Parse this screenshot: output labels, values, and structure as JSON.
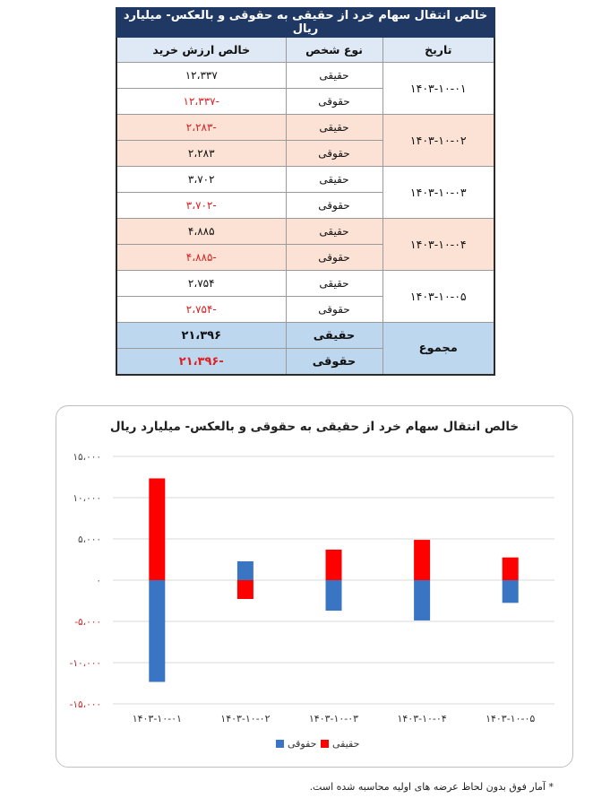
{
  "table": {
    "title": "خالص انتقال سهام خرد از حقیقی به حقوقی و بالعکس- میلیارد ریال",
    "headers": {
      "date": "تاریخ",
      "person_type": "نوع شخص",
      "net_value": "خالص ارزش خرید"
    },
    "groups": [
      {
        "date": "۱۴۰۳-۱۰-۰۱",
        "rows": [
          {
            "type": "حقیقی",
            "value": "۱۲،۳۳۷",
            "negative": false
          },
          {
            "type": "حقوقی",
            "value": "-۱۲،۳۳۷",
            "negative": true
          }
        ]
      },
      {
        "date": "۱۴۰۳-۱۰-۰۲",
        "rows": [
          {
            "type": "حقیقی",
            "value": "-۲،۲۸۳",
            "negative": true
          },
          {
            "type": "حقوقی",
            "value": "۲،۲۸۳",
            "negative": false
          }
        ]
      },
      {
        "date": "۱۴۰۳-۱۰-۰۳",
        "rows": [
          {
            "type": "حقیقی",
            "value": "۳،۷۰۲",
            "negative": false
          },
          {
            "type": "حقوقی",
            "value": "-۳،۷۰۲",
            "negative": true
          }
        ]
      },
      {
        "date": "۱۴۰۳-۱۰-۰۴",
        "rows": [
          {
            "type": "حقیقی",
            "value": "۴،۸۸۵",
            "negative": false
          },
          {
            "type": "حقوقی",
            "value": "-۴،۸۸۵",
            "negative": true
          }
        ]
      },
      {
        "date": "۱۴۰۳-۱۰-۰۵",
        "rows": [
          {
            "type": "حقیقی",
            "value": "۲،۷۵۴",
            "negative": false
          },
          {
            "type": "حقوقی",
            "value": "-۲،۷۵۴",
            "negative": true
          }
        ]
      }
    ],
    "total": {
      "label": "مجموع",
      "rows": [
        {
          "type": "حقیقی",
          "value": "۲۱،۳۹۶",
          "negative": false
        },
        {
          "type": "حقوقی",
          "value": "-۲۱،۳۹۶",
          "negative": true
        }
      ]
    }
  },
  "chart_data": {
    "type": "bar",
    "title": "خالص انتقال سهام خرد از حقیقی به حقوقی و بالعکس- میلیارد ریال",
    "categories": [
      "۱۴۰۳-۱۰-۰۱",
      "۱۴۰۳-۱۰-۰۲",
      "۱۴۰۳-۱۰-۰۳",
      "۱۴۰۳-۱۰-۰۴",
      "۱۴۰۳-۱۰-۰۵"
    ],
    "series": [
      {
        "name": "حقیقی",
        "color": "#ff0000",
        "values": [
          12337,
          -2283,
          3702,
          4885,
          2754
        ]
      },
      {
        "name": "حقوقی",
        "color": "#3a75c4",
        "values": [
          -12337,
          2283,
          -3702,
          -4885,
          -2754
        ]
      }
    ],
    "stacked": true,
    "ylim": [
      -15000,
      15000
    ],
    "yticks": [
      {
        "value": 15000,
        "label": "۱۵،۰۰۰",
        "negative": false
      },
      {
        "value": 10000,
        "label": "۱۰،۰۰۰",
        "negative": false
      },
      {
        "value": 5000,
        "label": "۵،۰۰۰",
        "negative": false
      },
      {
        "value": 0,
        "label": "۰",
        "negative": false
      },
      {
        "value": -5000,
        "label": "-۵،۰۰۰",
        "negative": true
      },
      {
        "value": -10000,
        "label": "-۱۰،۰۰۰",
        "negative": true
      },
      {
        "value": -15000,
        "label": "-۱۵،۰۰۰",
        "negative": true
      }
    ],
    "grid": true,
    "legend": "bottom"
  },
  "footnote": "* آمار فوق بدون لحاظ عرضه های اولیه محاسبه شده است."
}
